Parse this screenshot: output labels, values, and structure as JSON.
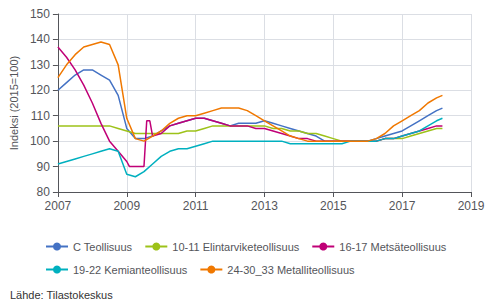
{
  "chart_data": {
    "type": "line",
    "ylabel": "Indeksi (2015=100)",
    "annotations": [
      "Lähde: Tilastokeskus"
    ],
    "xlim": [
      2007.0,
      2019.0
    ],
    "ylim": [
      80,
      150
    ],
    "xticks": [
      2007,
      2009,
      2011,
      2013,
      2015,
      2017,
      2019
    ],
    "yticks": [
      80,
      90,
      100,
      110,
      120,
      130,
      140,
      150
    ],
    "grid": true,
    "legend": "bottom",
    "series": [
      {
        "name": "C Teollisuus",
        "color": "#4472C4",
        "x": [
          2007.0,
          2007.25,
          2007.5,
          2007.75,
          2008.0,
          2008.25,
          2008.5,
          2008.75,
          2009.0,
          2009.25,
          2009.5,
          2009.75,
          2010.0,
          2010.25,
          2010.5,
          2010.75,
          2011.0,
          2011.25,
          2011.5,
          2011.75,
          2012.0,
          2012.25,
          2012.5,
          2012.75,
          2013.0,
          2013.25,
          2013.5,
          2013.75,
          2014.0,
          2014.25,
          2014.5,
          2014.75,
          2015.0,
          2015.25,
          2015.5,
          2015.75,
          2016.0,
          2016.25,
          2016.5,
          2016.75,
          2017.0,
          2017.25,
          2017.5,
          2017.75,
          2018.0,
          2018.17
        ],
        "values": [
          120,
          123,
          126,
          128,
          128,
          126,
          124,
          118,
          105,
          101,
          101,
          102,
          104,
          106,
          107,
          108,
          109,
          109,
          108,
          107,
          106,
          107,
          107,
          107,
          108,
          107,
          106,
          105,
          104,
          103,
          102,
          100,
          100,
          100,
          100,
          100,
          100,
          101,
          102,
          103,
          104,
          106,
          108,
          110,
          112,
          113
        ]
      },
      {
        "name": "10-11 Elintarviketeollisuus",
        "color": "#9DC219",
        "x": [
          2007.0,
          2007.25,
          2007.5,
          2007.75,
          2008.0,
          2008.25,
          2008.5,
          2008.75,
          2009.0,
          2009.25,
          2009.5,
          2009.75,
          2010.0,
          2010.25,
          2010.5,
          2010.75,
          2011.0,
          2011.25,
          2011.5,
          2011.75,
          2012.0,
          2012.25,
          2012.5,
          2012.75,
          2013.0,
          2013.25,
          2013.5,
          2013.75,
          2014.0,
          2014.25,
          2014.5,
          2014.75,
          2015.0,
          2015.25,
          2015.5,
          2015.75,
          2016.0,
          2016.25,
          2016.5,
          2016.75,
          2017.0,
          2017.25,
          2017.5,
          2017.75,
          2018.0,
          2018.17
        ],
        "values": [
          106,
          106,
          106,
          106,
          106,
          106,
          106,
          105,
          104,
          103,
          103,
          103,
          103,
          103,
          103,
          104,
          104,
          105,
          106,
          106,
          106,
          106,
          106,
          106,
          106,
          105,
          105,
          104,
          104,
          103,
          103,
          102,
          101,
          100,
          100,
          100,
          100,
          100,
          101,
          101,
          101,
          102,
          103,
          104,
          105,
          105
        ]
      },
      {
        "name": "16-17 Metsäteollisuus",
        "color": "#C00077",
        "x": [
          2007.0,
          2007.25,
          2007.5,
          2007.75,
          2008.0,
          2008.25,
          2008.5,
          2008.75,
          2009.0,
          2009.08,
          2009.17,
          2009.5,
          2009.58,
          2009.67,
          2009.75,
          2010.0,
          2010.25,
          2010.5,
          2010.75,
          2011.0,
          2011.25,
          2011.5,
          2011.75,
          2012.0,
          2012.25,
          2012.5,
          2012.75,
          2013.0,
          2013.25,
          2013.5,
          2013.75,
          2014.0,
          2014.25,
          2014.5,
          2014.75,
          2015.0,
          2015.25,
          2015.5,
          2015.75,
          2016.0,
          2016.25,
          2016.5,
          2016.75,
          2017.0,
          2017.25,
          2017.5,
          2017.75,
          2018.0,
          2018.17
        ],
        "values": [
          137,
          133,
          128,
          122,
          115,
          107,
          100,
          96,
          92,
          90,
          90,
          90,
          108,
          108,
          102,
          103,
          106,
          107,
          108,
          109,
          109,
          108,
          107,
          106,
          106,
          106,
          105,
          105,
          104,
          103,
          102,
          101,
          101,
          100,
          100,
          100,
          100,
          100,
          100,
          100,
          100,
          101,
          101,
          102,
          103,
          104,
          105,
          106,
          106
        ]
      },
      {
        "name": "19-22 Kemianteollisuus",
        "color": "#00B0BF",
        "x": [
          2007.0,
          2007.25,
          2007.5,
          2007.75,
          2008.0,
          2008.25,
          2008.5,
          2008.75,
          2009.0,
          2009.25,
          2009.5,
          2009.75,
          2010.0,
          2010.25,
          2010.5,
          2010.75,
          2011.0,
          2011.25,
          2011.5,
          2011.75,
          2012.0,
          2012.25,
          2012.5,
          2012.75,
          2013.0,
          2013.25,
          2013.5,
          2013.75,
          2014.0,
          2014.25,
          2014.5,
          2014.75,
          2015.0,
          2015.25,
          2015.5,
          2015.75,
          2016.0,
          2016.25,
          2016.5,
          2016.75,
          2017.0,
          2017.25,
          2017.5,
          2017.75,
          2018.0,
          2018.17
        ],
        "values": [
          91,
          92,
          93,
          94,
          95,
          96,
          97,
          96,
          87,
          86,
          88,
          91,
          94,
          96,
          97,
          97,
          98,
          99,
          100,
          100,
          100,
          100,
          100,
          100,
          100,
          100,
          100,
          99,
          99,
          99,
          99,
          99,
          99,
          99,
          100,
          100,
          100,
          100,
          101,
          101,
          102,
          103,
          104,
          106,
          108,
          109
        ]
      },
      {
        "name": "24-30_33 Metalliteollisuus",
        "color": "#F07800",
        "x": [
          2007.0,
          2007.25,
          2007.5,
          2007.75,
          2008.0,
          2008.25,
          2008.5,
          2008.75,
          2009.0,
          2009.25,
          2009.5,
          2009.75,
          2010.0,
          2010.25,
          2010.5,
          2010.75,
          2011.0,
          2011.25,
          2011.5,
          2011.75,
          2012.0,
          2012.25,
          2012.5,
          2012.75,
          2013.0,
          2013.25,
          2013.5,
          2013.75,
          2014.0,
          2014.25,
          2014.5,
          2014.75,
          2015.0,
          2015.25,
          2015.5,
          2015.75,
          2016.0,
          2016.25,
          2016.5,
          2016.75,
          2017.0,
          2017.25,
          2017.5,
          2017.75,
          2018.0,
          2018.17
        ],
        "values": [
          125,
          130,
          134,
          137,
          138,
          139,
          138,
          130,
          109,
          101,
          100,
          102,
          104,
          107,
          109,
          110,
          110,
          111,
          112,
          113,
          113,
          113,
          112,
          110,
          108,
          106,
          104,
          102,
          101,
          100,
          100,
          100,
          100,
          100,
          100,
          100,
          100,
          101,
          103,
          106,
          108,
          110,
          112,
          115,
          117,
          118
        ]
      }
    ]
  }
}
